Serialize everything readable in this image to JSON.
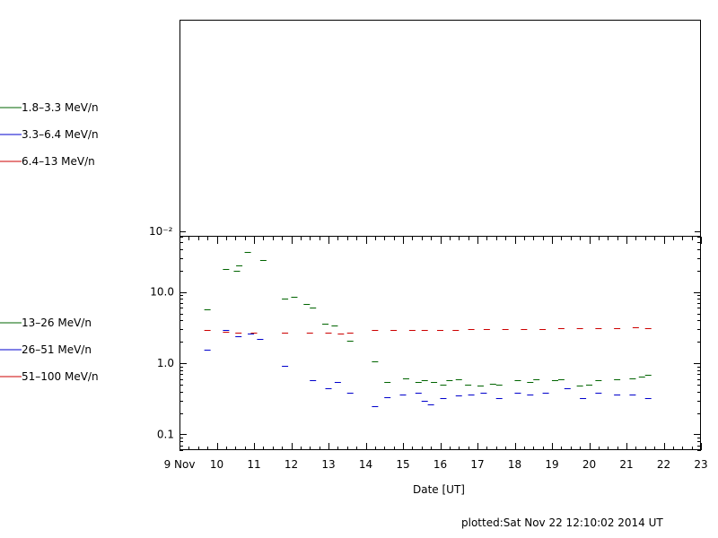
{
  "footer": {
    "plotted": "plotted:Sat Nov 22 12:10:02 2014 UT"
  },
  "chart_data": [
    {
      "type": "line",
      "panel": "top",
      "legend_placement": "left",
      "series": [
        {
          "name": "1.8–3.3 MeV/n",
          "color": "#006400",
          "values": []
        },
        {
          "name": "3.3–6.4 MeV/n",
          "color": "#0000cc",
          "values": []
        },
        {
          "name": "6.4–13 MeV/n",
          "color": "#cc0000",
          "values": []
        }
      ],
      "ytick_labels": [
        "10⁻²"
      ],
      "grid": false
    },
    {
      "type": "line",
      "panel": "bottom",
      "yscale": "log",
      "xlim": [
        "2014-11-09",
        "2014-11-23"
      ],
      "ylim": [
        0.06,
        60
      ],
      "xlabel": "Date [UT]",
      "x_tick_labels": [
        "9 Nov",
        "10",
        "11",
        "12",
        "13",
        "14",
        "15",
        "16",
        "17",
        "18",
        "19",
        "20",
        "21",
        "22",
        "23"
      ],
      "y_tick_labels": [
        "0.1",
        "1.0",
        "10.0"
      ],
      "grid": false,
      "legend_placement": "left",
      "series": [
        {
          "name": "13–26 MeV/n",
          "color": "#006400",
          "points": [
            [
              "2014-11-09T18:00",
              5.8
            ],
            [
              "2014-11-10T06:00",
              21
            ],
            [
              "2014-11-10T13:00",
              20
            ],
            [
              "2014-11-10T14:30",
              24
            ],
            [
              "2014-11-10T20:00",
              37
            ],
            [
              "2014-11-11T06:00",
              28
            ],
            [
              "2014-11-11T20:00",
              8.2
            ],
            [
              "2014-11-12T02:00",
              8.5
            ],
            [
              "2014-11-12T10:00",
              6.8
            ],
            [
              "2014-11-12T14:00",
              6.0
            ],
            [
              "2014-11-12T22:00",
              3.6
            ],
            [
              "2014-11-13T04:00",
              3.4
            ],
            [
              "2014-11-13T14:00",
              2.1
            ],
            [
              "2014-11-14T06:00",
              1.05
            ],
            [
              "2014-11-14T14:00",
              0.55
            ],
            [
              "2014-11-15T02:00",
              0.62
            ],
            [
              "2014-11-15T10:00",
              0.55
            ],
            [
              "2014-11-15T14:00",
              0.58
            ],
            [
              "2014-11-15T20:00",
              0.55
            ],
            [
              "2014-11-16T02:00",
              0.5
            ],
            [
              "2014-11-16T06:00",
              0.58
            ],
            [
              "2014-11-16T12:00",
              0.6
            ],
            [
              "2014-11-16T18:00",
              0.5
            ],
            [
              "2014-11-17T02:00",
              0.48
            ],
            [
              "2014-11-17T10:00",
              0.52
            ],
            [
              "2014-11-17T14:00",
              0.5
            ],
            [
              "2014-11-18T02:00",
              0.58
            ],
            [
              "2014-11-18T10:00",
              0.55
            ],
            [
              "2014-11-18T14:00",
              0.6
            ],
            [
              "2014-11-19T02:00",
              0.58
            ],
            [
              "2014-11-19T06:00",
              0.6
            ],
            [
              "2014-11-19T18:00",
              0.48
            ],
            [
              "2014-11-20T00:00",
              0.5
            ],
            [
              "2014-11-20T06:00",
              0.58
            ],
            [
              "2014-11-20T18:00",
              0.6
            ],
            [
              "2014-11-21T04:00",
              0.62
            ],
            [
              "2014-11-21T10:00",
              0.65
            ],
            [
              "2014-11-21T14:00",
              0.68
            ]
          ]
        },
        {
          "name": "26–51 MeV/n",
          "color": "#0000cc",
          "points": [
            [
              "2014-11-09T18:00",
              1.55
            ],
            [
              "2014-11-10T06:00",
              2.9
            ],
            [
              "2014-11-10T14:00",
              2.4
            ],
            [
              "2014-11-10T22:00",
              2.6
            ],
            [
              "2014-11-11T04:00",
              2.2
            ],
            [
              "2014-11-11T20:00",
              0.92
            ],
            [
              "2014-11-12T14:00",
              0.58
            ],
            [
              "2014-11-13T00:00",
              0.45
            ],
            [
              "2014-11-13T06:00",
              0.55
            ],
            [
              "2014-11-13T14:00",
              0.38
            ],
            [
              "2014-11-14T06:00",
              0.25
            ],
            [
              "2014-11-14T14:00",
              0.33
            ],
            [
              "2014-11-15T00:00",
              0.36
            ],
            [
              "2014-11-15T10:00",
              0.38
            ],
            [
              "2014-11-15T14:00",
              0.3
            ],
            [
              "2014-11-15T18:00",
              0.26
            ],
            [
              "2014-11-16T02:00",
              0.32
            ],
            [
              "2014-11-16T12:00",
              0.35
            ],
            [
              "2014-11-16T20:00",
              0.36
            ],
            [
              "2014-11-17T04:00",
              0.38
            ],
            [
              "2014-11-17T14:00",
              0.32
            ],
            [
              "2014-11-18T02:00",
              0.38
            ],
            [
              "2014-11-18T10:00",
              0.36
            ],
            [
              "2014-11-18T20:00",
              0.38
            ],
            [
              "2014-11-19T10:00",
              0.45
            ],
            [
              "2014-11-19T20:00",
              0.32
            ],
            [
              "2014-11-20T06:00",
              0.38
            ],
            [
              "2014-11-20T18:00",
              0.36
            ],
            [
              "2014-11-21T04:00",
              0.36
            ],
            [
              "2014-11-21T14:00",
              0.32
            ]
          ]
        },
        {
          "name": "51–100 MeV/n",
          "color": "#cc0000",
          "points": [
            [
              "2014-11-09T18:00",
              2.9
            ],
            [
              "2014-11-10T06:00",
              2.8
            ],
            [
              "2014-11-10T14:00",
              2.7
            ],
            [
              "2014-11-11T00:00",
              2.7
            ],
            [
              "2014-11-11T20:00",
              2.65
            ],
            [
              "2014-11-12T12:00",
              2.65
            ],
            [
              "2014-11-13T00:00",
              2.7
            ],
            [
              "2014-11-13T08:00",
              2.6
            ],
            [
              "2014-11-13T14:00",
              2.7
            ],
            [
              "2014-11-14T06:00",
              2.9
            ],
            [
              "2014-11-14T18:00",
              2.9
            ],
            [
              "2014-11-15T06:00",
              2.9
            ],
            [
              "2014-11-15T14:00",
              2.95
            ],
            [
              "2014-11-16T00:00",
              2.9
            ],
            [
              "2014-11-16T10:00",
              2.95
            ],
            [
              "2014-11-16T20:00",
              3.0
            ],
            [
              "2014-11-17T06:00",
              3.05
            ],
            [
              "2014-11-17T18:00",
              3.05
            ],
            [
              "2014-11-18T06:00",
              3.0
            ],
            [
              "2014-11-18T18:00",
              3.05
            ],
            [
              "2014-11-19T06:00",
              3.1
            ],
            [
              "2014-11-19T18:00",
              3.1
            ],
            [
              "2014-11-20T06:00",
              3.1
            ],
            [
              "2014-11-20T18:00",
              3.15
            ],
            [
              "2014-11-21T06:00",
              3.2
            ],
            [
              "2014-11-21T14:00",
              3.1
            ]
          ]
        }
      ]
    }
  ]
}
